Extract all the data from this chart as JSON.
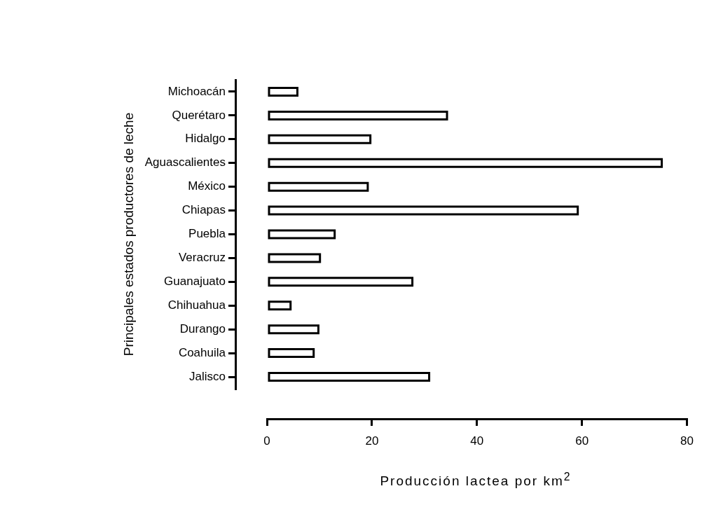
{
  "chart_data": {
    "type": "bar",
    "orientation": "horizontal",
    "xlabel": "Producción lactea por km$^{2}$",
    "ylabel": "Principales estados productores de leche",
    "categories": [
      "Michoacán",
      "Querétaro",
      "Hidalgo",
      "Aguascalientes",
      "México",
      "Chiapas",
      "Puebla",
      "Veracruz",
      "Guanajuato",
      "Chihuahua",
      "Durango",
      "Coahuila",
      "Jalisco"
    ],
    "values": [
      6.0,
      34.5,
      19.9,
      75.4,
      19.4,
      59.4,
      13.1,
      10.3,
      27.9,
      4.7,
      10.0,
      9.1,
      31.1
    ],
    "color": "#000000",
    "xlim": [
      0,
      80
    ],
    "xticks": [
      0,
      20,
      40,
      60,
      80
    ],
    "grid": false,
    "legend": false
  }
}
